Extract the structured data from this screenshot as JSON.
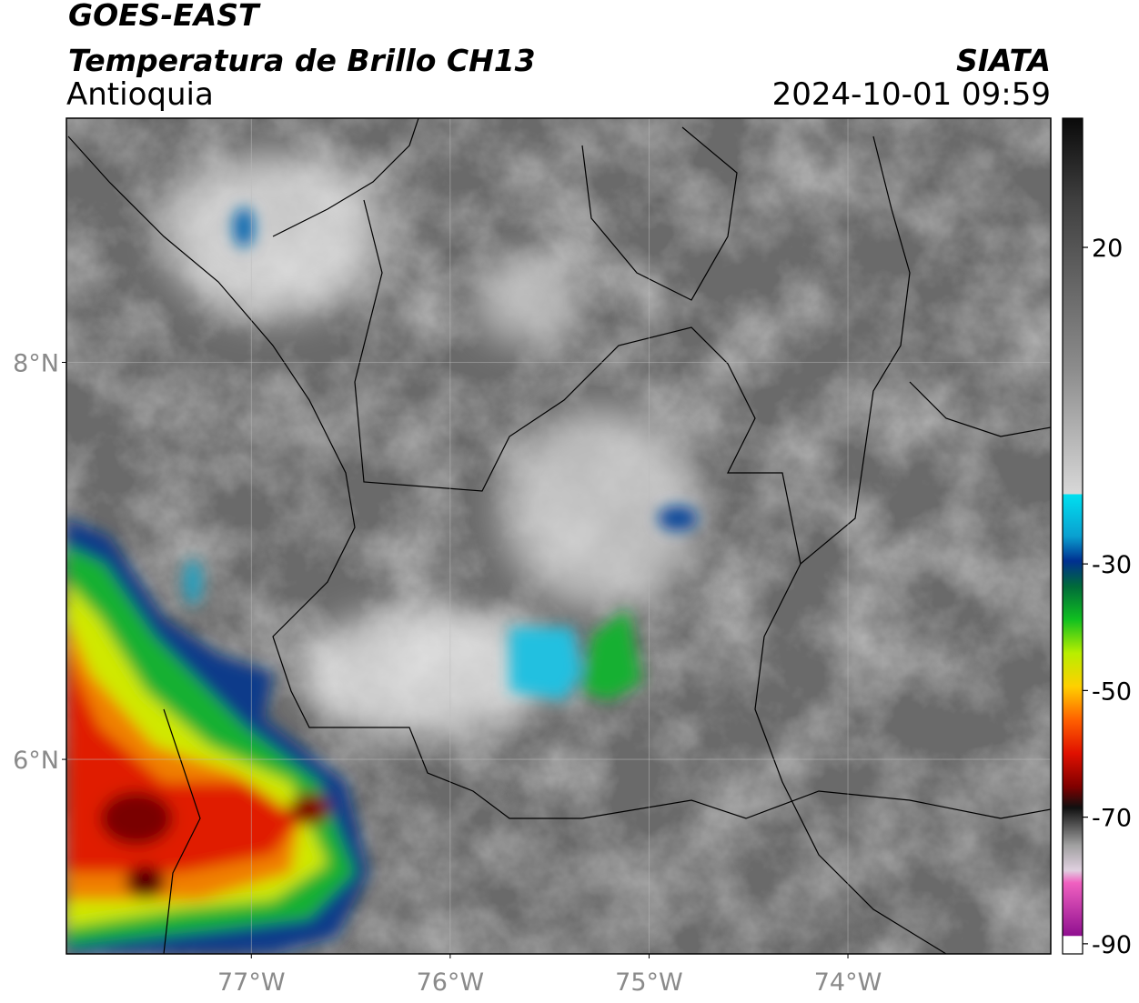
{
  "header": {
    "title": "GOES-EAST",
    "subtitle": "Temperatura de Brillo CH13",
    "region": "Antioquia",
    "source": "SIATA",
    "datetime": "2024-10-01 09:59"
  },
  "map": {
    "xlim": [
      -77.93,
      -72.98
    ],
    "ylim": [
      5.02,
      9.23
    ],
    "xticks": [
      {
        "value": -77,
        "label": "77°W"
      },
      {
        "value": -76,
        "label": "76°W"
      },
      {
        "value": -75,
        "label": "75°W"
      },
      {
        "value": -74,
        "label": "74°W"
      }
    ],
    "yticks": [
      {
        "value": 6,
        "label": "6°N"
      },
      {
        "value": 8,
        "label": "8°N"
      }
    ],
    "grid": true
  },
  "colorbar": {
    "lim": [
      -91.6,
      40.4
    ],
    "ticks": [
      -90,
      -70,
      -50,
      -30,
      20
    ]
  }
}
